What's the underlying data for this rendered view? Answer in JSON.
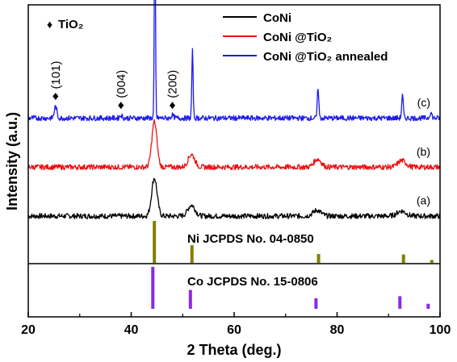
{
  "chart_data": {
    "type": "line",
    "xlabel": "2 Theta (deg.)",
    "ylabel": "Intensity (a.u.)",
    "xlim": [
      20,
      100
    ],
    "x_ticks": [
      20,
      40,
      60,
      80,
      100
    ],
    "x_tick_labels": [
      "20",
      "40",
      "60",
      "80",
      "100"
    ],
    "y_ticks_shown": false,
    "grid": false,
    "legend_position": "top-right",
    "marker_legend": {
      "symbol": "♦",
      "label": "TiO₂"
    },
    "series": [
      {
        "name": "CoNi",
        "curve_label": "(a)",
        "color": "#000000",
        "baseline": 0,
        "noise": 0.9,
        "peaks": [
          {
            "x": 44.5,
            "height": 10.5,
            "width": 0.75
          },
          {
            "x": 51.7,
            "height": 3.0,
            "width": 1.0
          },
          {
            "x": 76.1,
            "height": 1.6,
            "width": 1.1
          },
          {
            "x": 92.5,
            "height": 1.4,
            "width": 1.2
          }
        ]
      },
      {
        "name": "CoNi @TiO₂",
        "curve_label": "(b)",
        "color": "#ee1111",
        "baseline": 13.5,
        "noise": 0.9,
        "peaks": [
          {
            "x": 44.5,
            "height": 12.5,
            "width": 0.7
          },
          {
            "x": 51.7,
            "height": 3.5,
            "width": 0.9
          },
          {
            "x": 76.2,
            "height": 2.2,
            "width": 1.0
          },
          {
            "x": 92.6,
            "height": 1.8,
            "width": 1.1
          }
        ]
      },
      {
        "name": "CoNi @TiO₂ annealed",
        "curve_label": "(c)",
        "color": "#1a1aee",
        "baseline": 27,
        "noise": 0.9,
        "peaks": [
          {
            "x": 25.3,
            "height": 3.2,
            "width": 0.35
          },
          {
            "x": 38.0,
            "height": 0.8,
            "width": 0.35
          },
          {
            "x": 44.6,
            "height": 57,
            "width": 0.16
          },
          {
            "x": 48.0,
            "height": 0.8,
            "width": 0.35
          },
          {
            "x": 51.9,
            "height": 18.5,
            "width": 0.18
          },
          {
            "x": 76.3,
            "height": 8.5,
            "width": 0.2
          },
          {
            "x": 92.7,
            "height": 6.2,
            "width": 0.22
          },
          {
            "x": 98.2,
            "height": 1.5,
            "width": 0.3
          }
        ]
      }
    ],
    "peak_annotations": [
      {
        "label": "(101)",
        "x": 25.3,
        "level": 33
      },
      {
        "label": "(004)",
        "x": 38.0,
        "level": 30.5
      },
      {
        "label": "(200)",
        "x": 48.0,
        "level": 30.5
      }
    ],
    "reference_panels": [
      {
        "label": "Ni  JCPDS No. 04-0850",
        "color": "#808000",
        "sticks": [
          {
            "x": 44.5,
            "intensity": 100
          },
          {
            "x": 51.8,
            "intensity": 42
          },
          {
            "x": 76.4,
            "intensity": 21
          },
          {
            "x": 92.9,
            "intensity": 20
          },
          {
            "x": 98.4,
            "intensity": 7
          }
        ]
      },
      {
        "label": "Co JCPDS No. 15-0806",
        "color": "#8a2be2",
        "sticks": [
          {
            "x": 44.2,
            "intensity": 100
          },
          {
            "x": 51.5,
            "intensity": 45
          },
          {
            "x": 75.9,
            "intensity": 25
          },
          {
            "x": 92.2,
            "intensity": 30
          },
          {
            "x": 97.7,
            "intensity": 12
          }
        ]
      }
    ]
  }
}
